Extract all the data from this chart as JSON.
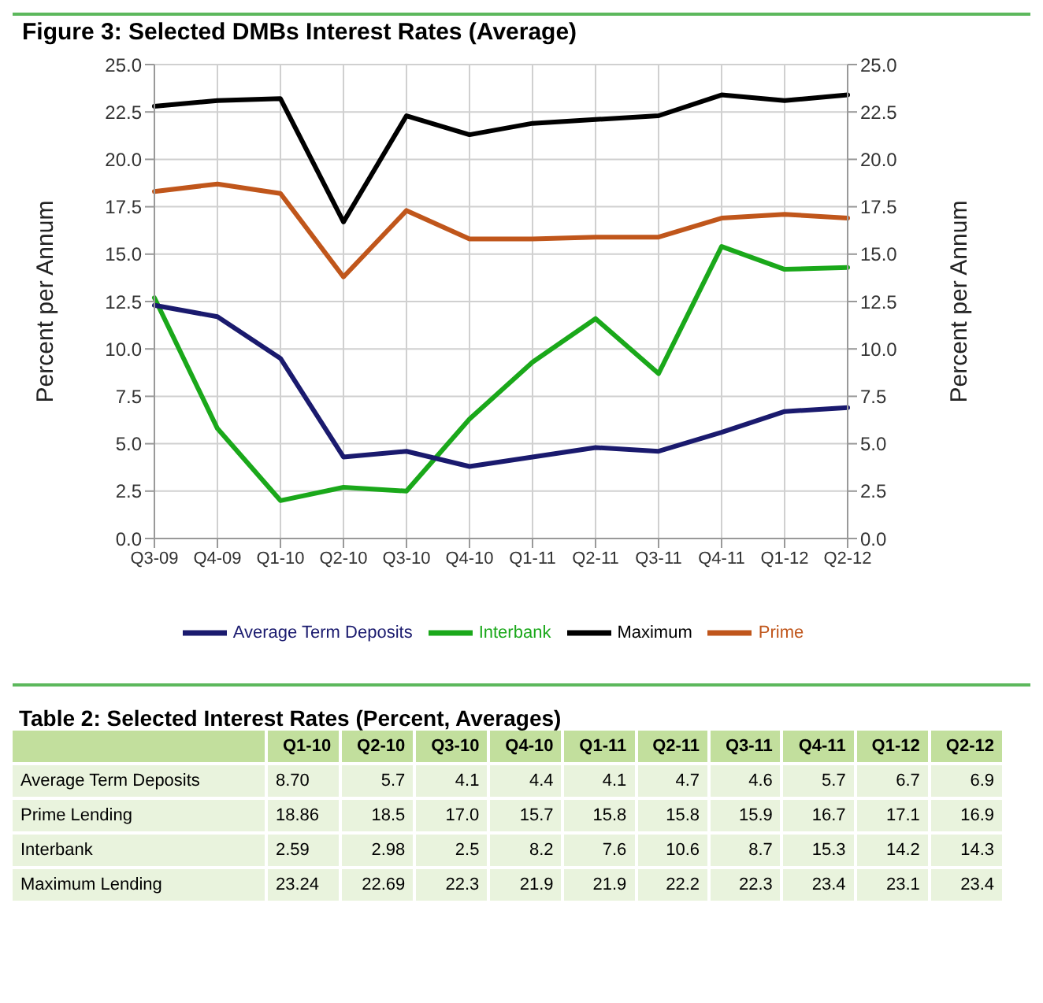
{
  "chart_data": [
    {
      "type": "line",
      "title": "Figure 3: Selected DMBs Interest Rates (Average)",
      "ylabel": "Percent per Annum",
      "y2label": "Percent per Annum",
      "categories": [
        "Q3-09",
        "Q4-09",
        "Q1-10",
        "Q2-10",
        "Q3-10",
        "Q4-10",
        "Q1-11",
        "Q2-11",
        "Q3-11",
        "Q4-11",
        "Q1-12",
        "Q2-12"
      ],
      "series": [
        {
          "name": "Prime",
          "color": "#c0561b",
          "values": [
            18.3,
            18.7,
            18.2,
            13.8,
            17.3,
            15.8,
            15.8,
            15.9,
            15.9,
            16.9,
            17.1,
            16.9
          ]
        },
        {
          "name": "Interbank",
          "color": "#1aa81a",
          "values": [
            12.7,
            5.8,
            2.0,
            2.7,
            2.5,
            6.3,
            9.3,
            11.6,
            8.7,
            15.4,
            14.2,
            14.3
          ]
        },
        {
          "name": "Maximum",
          "color": "#000000",
          "values": [
            22.8,
            23.1,
            23.2,
            16.7,
            22.3,
            21.3,
            21.9,
            22.1,
            22.3,
            23.4,
            23.1,
            23.4
          ]
        },
        {
          "name": "Average Term Deposits",
          "color": "#1a1a6e",
          "values": [
            12.3,
            11.7,
            9.5,
            4.3,
            4.6,
            3.8,
            4.3,
            4.8,
            4.6,
            5.6,
            6.7,
            6.9
          ]
        }
      ],
      "ylim": [
        0,
        25
      ],
      "yticks": [
        {
          "value": 0,
          "label": "0.0"
        },
        {
          "value": 2.5,
          "label": "2.5"
        },
        {
          "value": 5,
          "label": "5.0"
        },
        {
          "value": 7.5,
          "label": "7.5"
        },
        {
          "value": 10,
          "label": "10.0"
        },
        {
          "value": 12.5,
          "label": "12.5"
        },
        {
          "value": 15,
          "label": "15.0"
        },
        {
          "value": 17.5,
          "label": "17.5"
        },
        {
          "value": 20,
          "label": "20.0"
        },
        {
          "value": 22.5,
          "label": "22.5"
        },
        {
          "value": 25,
          "label": "25.0"
        }
      ],
      "y2lim": [
        0,
        25
      ],
      "y2ticks": [
        {
          "value": 0,
          "label": "0.0"
        },
        {
          "value": 2.5,
          "label": "2.5"
        },
        {
          "value": 5,
          "label": "5.0"
        },
        {
          "value": 7.5,
          "label": "7.5"
        },
        {
          "value": 10,
          "label": "10.0"
        },
        {
          "value": 12.5,
          "label": "12.5"
        },
        {
          "value": 15,
          "label": "15.0"
        },
        {
          "value": 17.5,
          "label": "17.5"
        },
        {
          "value": 20,
          "label": "20.0"
        },
        {
          "value": 22.5,
          "label": "22.5"
        },
        {
          "value": 25,
          "label": "25.0"
        }
      ],
      "grid": true,
      "legend": "bottom",
      "marker": "none",
      "line_style": "solid"
    },
    {
      "type": "other",
      "title": "Table 2: Selected Interest Rates (Percent, Averages)",
      "categories": [
        "Q1-10",
        "Q2-10",
        "Q3-10",
        "Q4-10",
        "Q1-11",
        "Q2-11",
        "Q3-11",
        "Q4-11",
        "Q1-12",
        "Q2-12"
      ],
      "series": [
        {
          "name": "Average Term Deposits",
          "values": [
            8.7,
            5.7,
            4.1,
            4.4,
            4.1,
            4.7,
            4.6,
            5.7,
            6.7,
            6.9
          ],
          "value_labels": [
            "8.70",
            "5.7",
            "4.1",
            "4.4",
            "4.1",
            "4.7",
            "4.6",
            "5.7",
            "6.7",
            "6.9"
          ]
        },
        {
          "name": "Prime Lending",
          "values": [
            18.86,
            18.5,
            17.0,
            15.7,
            15.8,
            15.8,
            15.9,
            16.7,
            17.1,
            16.9
          ],
          "value_labels": [
            "18.86",
            "18.5",
            "17.0",
            "15.7",
            "15.8",
            "15.8",
            "15.9",
            "16.7",
            "17.1",
            "16.9"
          ]
        },
        {
          "name": "Interbank",
          "values": [
            2.59,
            2.98,
            2.5,
            8.2,
            7.6,
            10.6,
            8.7,
            15.3,
            14.2,
            14.3
          ],
          "value_labels": [
            "2.59",
            "2.98",
            "2.5",
            "8.2",
            "7.6",
            "10.6",
            "8.7",
            "15.3",
            "14.2",
            "14.3"
          ]
        },
        {
          "name": "Maximum Lending",
          "values": [
            23.24,
            22.69,
            22.3,
            21.9,
            21.9,
            22.2,
            22.3,
            23.4,
            23.1,
            23.4
          ],
          "value_labels": [
            "23.24",
            "22.69",
            "22.3",
            "21.9",
            "21.9",
            "22.2",
            "22.3",
            "23.4",
            "23.1",
            "23.4"
          ]
        }
      ]
    }
  ]
}
